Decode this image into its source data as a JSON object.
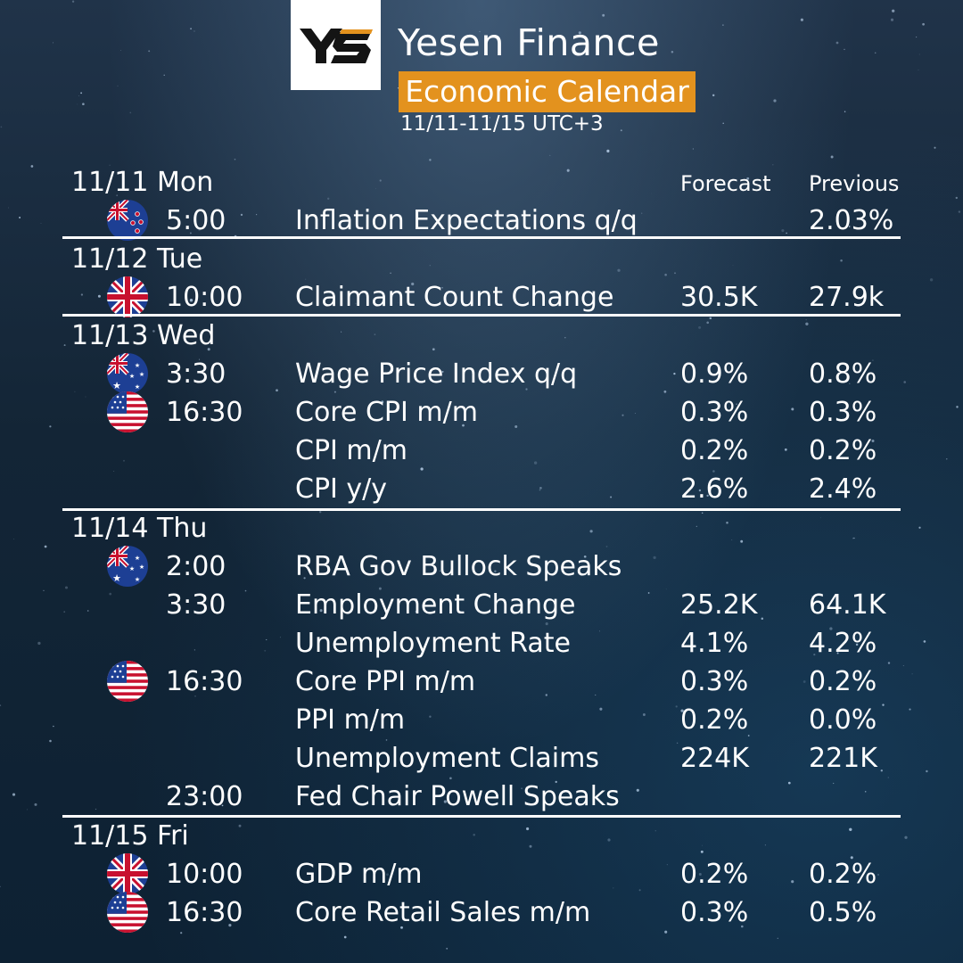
{
  "header": {
    "logo_text": "YS",
    "brand": "Yesen Finance",
    "title": "Economic Calendar",
    "date_range": "11/11-11/15 UTC+3"
  },
  "columns": {
    "forecast": "Forecast",
    "previous": "Previous"
  },
  "days": [
    {
      "label": "11/11 Mon"
    },
    {
      "label": "11/12 Tue"
    },
    {
      "label": "11/13 Wed"
    },
    {
      "label": "11/14 Thu"
    },
    {
      "label": "11/15 Fri"
    }
  ],
  "events": [
    {
      "flag": "new-zealand-flag-icon",
      "time": "5:00",
      "event": "Inflation Expectations q/q",
      "forecast": "",
      "previous": "2.03%"
    },
    {
      "flag": "uk-flag-icon",
      "time": "10:00",
      "event": "Claimant Count Change",
      "forecast": "30.5K",
      "previous": "27.9k"
    },
    {
      "flag": "australia-flag-icon",
      "time": "3:30",
      "event": "Wage Price Index q/q",
      "forecast": "0.9%",
      "previous": "0.8%"
    },
    {
      "flag": "us-flag-icon",
      "time": "16:30",
      "event": "Core CPI m/m",
      "forecast": "0.3%",
      "previous": "0.3%"
    },
    {
      "flag": "",
      "time": "",
      "event": "CPI m/m",
      "forecast": "0.2%",
      "previous": "0.2%"
    },
    {
      "flag": "",
      "time": "",
      "event": "CPI y/y",
      "forecast": "2.6%",
      "previous": "2.4%"
    },
    {
      "flag": "australia-flag-icon",
      "time": "2:00",
      "event": "RBA Gov Bullock Speaks",
      "forecast": "",
      "previous": ""
    },
    {
      "flag": "",
      "time": "3:30",
      "event": "Employment Change",
      "forecast": "25.2K",
      "previous": "64.1K"
    },
    {
      "flag": "",
      "time": "",
      "event": "Unemployment Rate",
      "forecast": "4.1%",
      "previous": "4.2%"
    },
    {
      "flag": "us-flag-icon",
      "time": "16:30",
      "event": "Core PPI m/m",
      "forecast": "0.3%",
      "previous": "0.2%"
    },
    {
      "flag": "",
      "time": "",
      "event": "PPI m/m",
      "forecast": "0.2%",
      "previous": "0.0%"
    },
    {
      "flag": "",
      "time": "",
      "event": "Unemployment Claims",
      "forecast": "224K",
      "previous": "221K"
    },
    {
      "flag": "",
      "time": "23:00",
      "event": "Fed Chair Powell Speaks",
      "forecast": "",
      "previous": ""
    },
    {
      "flag": "uk-flag-icon",
      "time": "10:00",
      "event": "GDP m/m",
      "forecast": "0.2%",
      "previous": "0.2%"
    },
    {
      "flag": "us-flag-icon",
      "time": "16:30",
      "event": "Core Retail Sales m/m",
      "forecast": "0.3%",
      "previous": "0.5%"
    }
  ],
  "colors": {
    "accent": "#e3921e",
    "text": "#ffffff",
    "background": "#132536"
  }
}
